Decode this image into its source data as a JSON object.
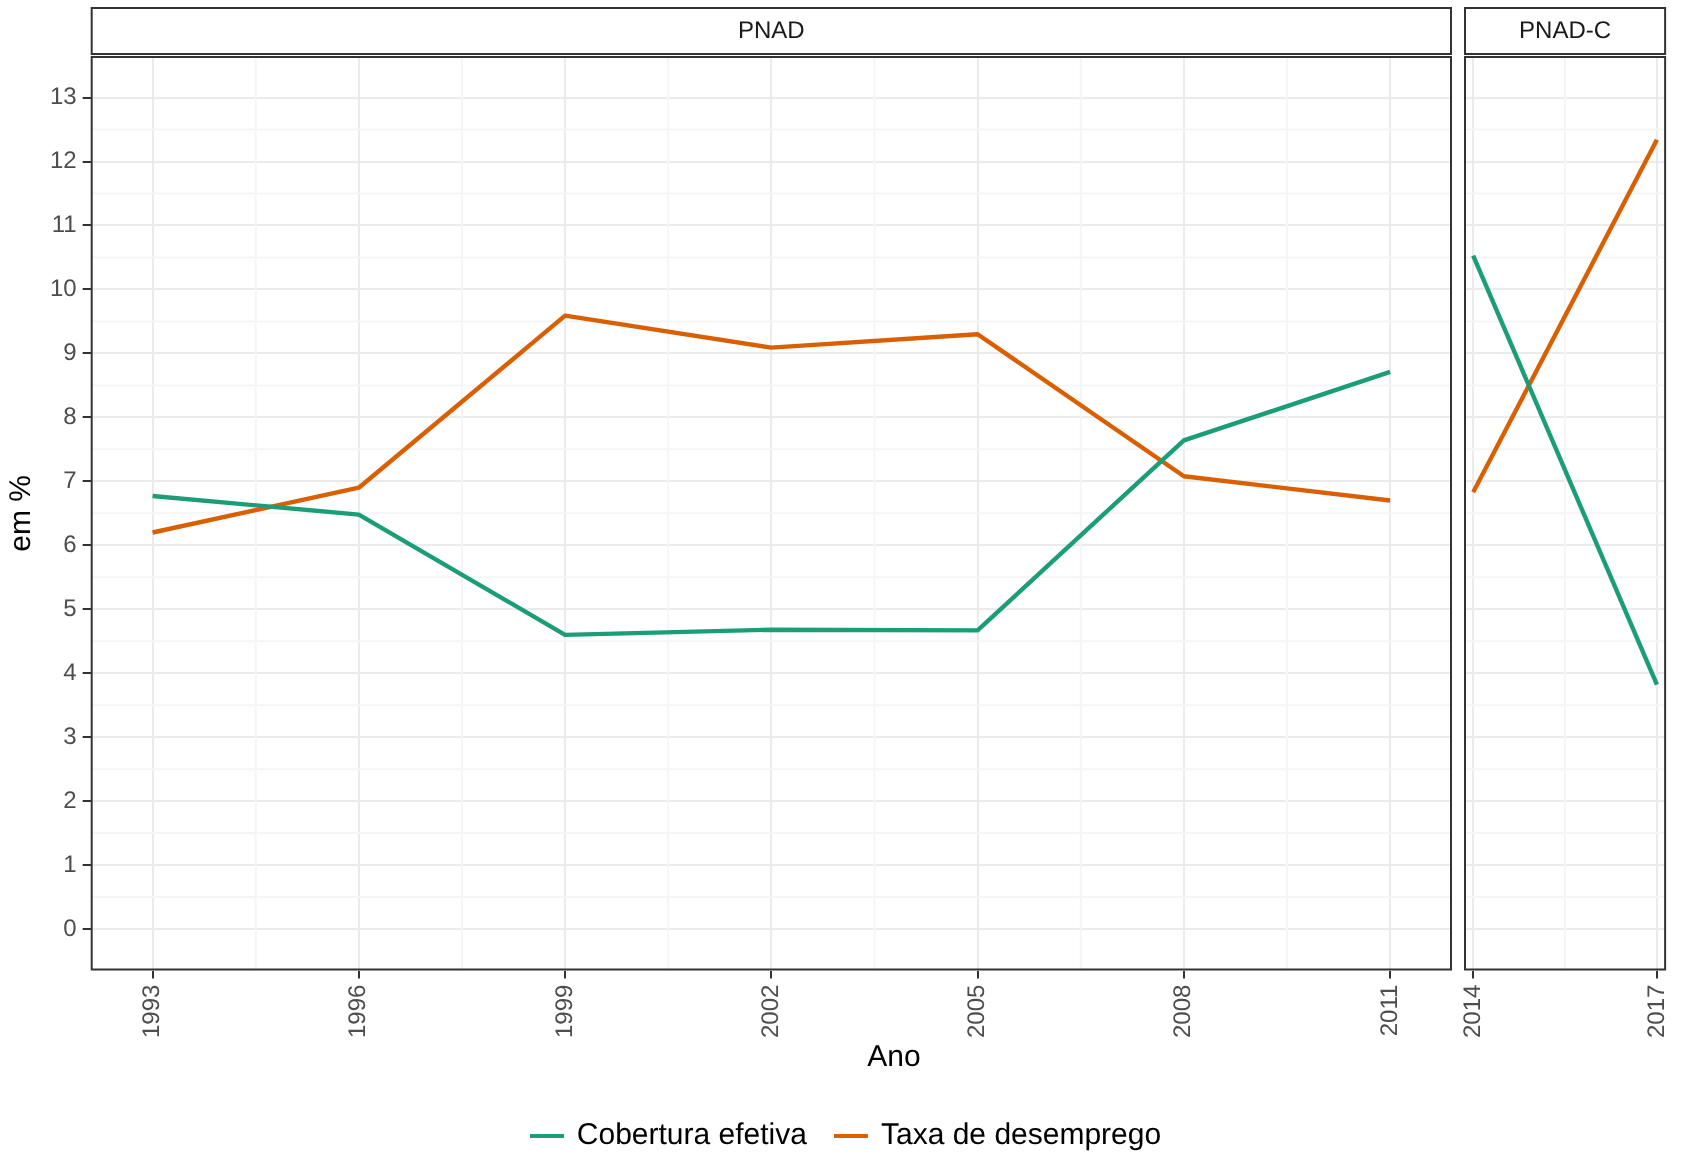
{
  "chart_data": [
    {
      "type": "line",
      "title": "PNAD",
      "xlabel": "Ano",
      "ylabel": "em %",
      "x": [
        1993,
        1996,
        1999,
        2002,
        2005,
        2008,
        2011
      ],
      "series": [
        {
          "name": "Cobertura efetiva",
          "color": "#1b9e77",
          "values": [
            6.77,
            6.48,
            4.6,
            4.68,
            4.67,
            7.64,
            8.71
          ]
        },
        {
          "name": "Taxa de desemprego",
          "color": "#d95f02",
          "values": [
            6.2,
            6.9,
            9.59,
            9.09,
            9.3,
            7.08,
            6.7
          ]
        }
      ],
      "xlim": [
        1992.1,
        2011.9
      ],
      "xticks": [
        1993,
        1996,
        1999,
        2002,
        2005,
        2008,
        2011
      ],
      "ylim": [
        -0.65,
        13.65
      ],
      "yticks": [
        0,
        1,
        2,
        3,
        4,
        5,
        6,
        7,
        8,
        9,
        10,
        11,
        12,
        13
      ],
      "grid": true,
      "legend": "bottom"
    },
    {
      "type": "line",
      "title": "PNAD-C",
      "x": [
        2014,
        2017
      ],
      "series": [
        {
          "color": "#1b9e77",
          "values": [
            10.53,
            3.82
          ]
        },
        {
          "color": "#d95f02",
          "values": [
            6.83,
            12.34
          ]
        }
      ],
      "xlim": [
        2013.85,
        2017.15
      ],
      "xticks": [
        2014,
        2017
      ],
      "ylim": [
        -0.65,
        13.65
      ],
      "yticks": [
        0,
        1,
        2,
        3,
        4,
        5,
        6,
        7,
        8,
        9,
        10,
        11,
        12,
        13
      ],
      "grid": true,
      "tick_labels": "x"
    }
  ]
}
